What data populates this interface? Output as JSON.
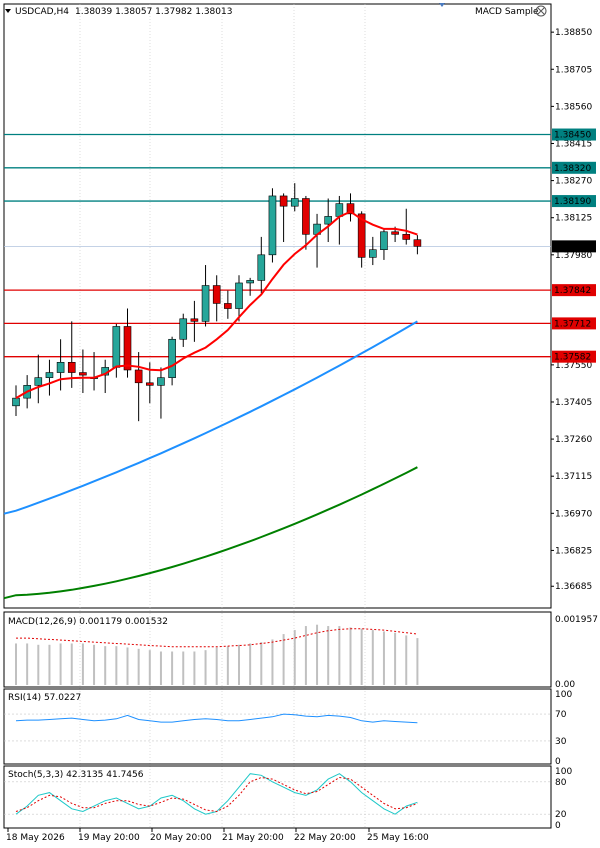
{
  "header": {
    "symbol": "USDCAD,H4",
    "ohlc": "1.38039 1.38057 1.37982 1.38013",
    "expert": "MACD Sample"
  },
  "chart_data": [
    {
      "type": "candlestick",
      "panel": "price",
      "ylim": [
        1.366,
        1.3896
      ],
      "y_ticks": [
        "1.38850",
        "1.38705",
        "1.38560",
        "1.38415",
        "1.38270",
        "1.38125",
        "1.37980",
        "1.37550",
        "1.37405",
        "1.37260",
        "1.37115",
        "1.36970",
        "1.36825",
        "1.36685"
      ],
      "levels": [
        {
          "value": 1.3845,
          "label": "1.38450",
          "color": "#008080"
        },
        {
          "value": 1.3832,
          "label": "1.38320",
          "color": "#008080"
        },
        {
          "value": 1.3819,
          "label": "1.38190",
          "color": "#008080"
        },
        {
          "value": 1.37842,
          "label": "1.37842",
          "color": "#e00000"
        },
        {
          "value": 1.37712,
          "label": "1.37712",
          "color": "#e00000"
        },
        {
          "value": 1.37582,
          "label": "1.37582",
          "color": "#e00000"
        }
      ],
      "current_price": {
        "value": 1.38013,
        "label": "1.38013"
      },
      "candles": [
        {
          "o": 1.3739,
          "h": 1.3747,
          "l": 1.3735,
          "c": 1.3742
        },
        {
          "o": 1.3742,
          "h": 1.3751,
          "l": 1.3738,
          "c": 1.3747
        },
        {
          "o": 1.3747,
          "h": 1.3759,
          "l": 1.374,
          "c": 1.375
        },
        {
          "o": 1.375,
          "h": 1.3757,
          "l": 1.3743,
          "c": 1.3752
        },
        {
          "o": 1.3752,
          "h": 1.3765,
          "l": 1.3745,
          "c": 1.3756
        },
        {
          "o": 1.3756,
          "h": 1.3772,
          "l": 1.3746,
          "c": 1.3752
        },
        {
          "o": 1.3752,
          "h": 1.3761,
          "l": 1.3744,
          "c": 1.3751
        },
        {
          "o": 1.375,
          "h": 1.376,
          "l": 1.3745,
          "c": 1.375
        },
        {
          "o": 1.3751,
          "h": 1.3757,
          "l": 1.3744,
          "c": 1.3754
        },
        {
          "o": 1.3754,
          "h": 1.3771,
          "l": 1.375,
          "c": 1.377
        },
        {
          "o": 1.377,
          "h": 1.3777,
          "l": 1.375,
          "c": 1.3753
        },
        {
          "o": 1.3753,
          "h": 1.376,
          "l": 1.3733,
          "c": 1.3748
        },
        {
          "o": 1.3748,
          "h": 1.3756,
          "l": 1.374,
          "c": 1.3747
        },
        {
          "o": 1.3747,
          "h": 1.3754,
          "l": 1.3734,
          "c": 1.375
        },
        {
          "o": 1.375,
          "h": 1.3766,
          "l": 1.3747,
          "c": 1.3765
        },
        {
          "o": 1.3765,
          "h": 1.3775,
          "l": 1.3762,
          "c": 1.3773
        },
        {
          "o": 1.3773,
          "h": 1.378,
          "l": 1.3764,
          "c": 1.3772
        },
        {
          "o": 1.3772,
          "h": 1.3794,
          "l": 1.377,
          "c": 1.3786
        },
        {
          "o": 1.3786,
          "h": 1.379,
          "l": 1.3772,
          "c": 1.3779
        },
        {
          "o": 1.3779,
          "h": 1.3784,
          "l": 1.3773,
          "c": 1.3777
        },
        {
          "o": 1.3777,
          "h": 1.379,
          "l": 1.3772,
          "c": 1.3787
        },
        {
          "o": 1.3787,
          "h": 1.3789,
          "l": 1.3782,
          "c": 1.3788
        },
        {
          "o": 1.3788,
          "h": 1.3805,
          "l": 1.3783,
          "c": 1.3798
        },
        {
          "o": 1.3798,
          "h": 1.3824,
          "l": 1.3795,
          "c": 1.3821
        },
        {
          "o": 1.3821,
          "h": 1.3822,
          "l": 1.3803,
          "c": 1.3817
        },
        {
          "o": 1.3817,
          "h": 1.3826,
          "l": 1.3815,
          "c": 1.382
        },
        {
          "o": 1.382,
          "h": 1.3821,
          "l": 1.38,
          "c": 1.3806
        },
        {
          "o": 1.3806,
          "h": 1.3814,
          "l": 1.3793,
          "c": 1.381
        },
        {
          "o": 1.381,
          "h": 1.382,
          "l": 1.3803,
          "c": 1.3813
        },
        {
          "o": 1.3813,
          "h": 1.3821,
          "l": 1.3802,
          "c": 1.3818
        },
        {
          "o": 1.3818,
          "h": 1.3822,
          "l": 1.3811,
          "c": 1.3814
        },
        {
          "o": 1.3814,
          "h": 1.3815,
          "l": 1.3793,
          "c": 1.3797
        },
        {
          "o": 1.3797,
          "h": 1.3805,
          "l": 1.3794,
          "c": 1.38
        },
        {
          "o": 1.38,
          "h": 1.3808,
          "l": 1.3796,
          "c": 1.3807
        },
        {
          "o": 1.3807,
          "h": 1.3809,
          "l": 1.3803,
          "c": 1.3806
        },
        {
          "o": 1.3806,
          "h": 1.3816,
          "l": 1.3802,
          "c": 1.3804
        },
        {
          "o": 1.38039,
          "h": 1.38057,
          "l": 1.37982,
          "c": 1.38013
        }
      ],
      "moving_averages": [
        {
          "color": "#ff0000",
          "from": 1.3746,
          "to": 1.3797,
          "shape": "fast"
        },
        {
          "color": "#1e90ff",
          "from": 1.3698,
          "to": 1.3772,
          "shape": "mid"
        },
        {
          "color": "#008000",
          "from": 1.3665,
          "to": 1.3715,
          "shape": "slow"
        }
      ],
      "x_labels": [
        "18 May 2026",
        "19 May 20:00",
        "20 May 20:00",
        "21 May 20:00",
        "22 May 20:00",
        "25 May 16:00"
      ]
    },
    {
      "type": "bar",
      "panel": "macd",
      "label": "MACD(12,26,9) 0.001179 0.001532",
      "y_ticks": [
        "0.001957",
        "0.00"
      ],
      "ylim": [
        0,
        0.002
      ]
    },
    {
      "type": "line",
      "panel": "rsi",
      "label": "RSI(14) 57.0227",
      "y_ticks": [
        "100",
        "70",
        "30",
        "0"
      ],
      "ylim": [
        0,
        100
      ]
    },
    {
      "type": "line",
      "panel": "stoch",
      "label": "Stoch(5,3,3) 42.3135 41.7456",
      "y_ticks": [
        "100",
        "80",
        "20",
        "0"
      ],
      "ylim": [
        0,
        100
      ]
    }
  ],
  "colors": {
    "bull": "#26a69a",
    "bear": "#e00000",
    "grid": "#c8c8c8",
    "frame": "#000000"
  }
}
